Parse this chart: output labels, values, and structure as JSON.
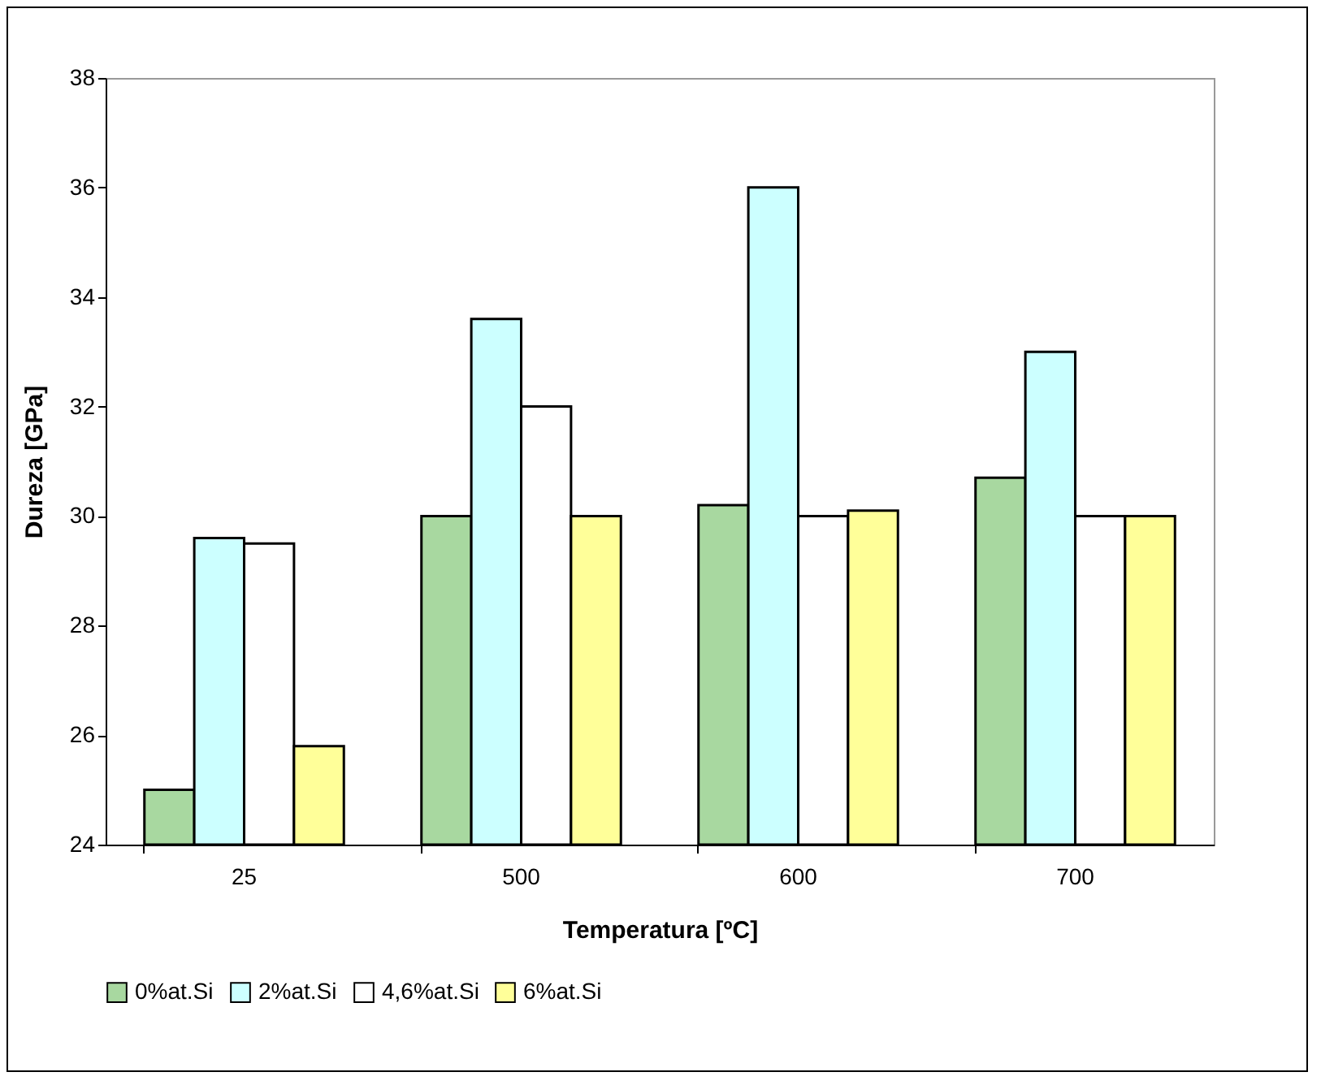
{
  "chart_data": {
    "type": "bar",
    "xlabel": "Temperatura [ºC]",
    "ylabel": "Dureza [GPa]",
    "categories": [
      "25",
      "500",
      "600",
      "700"
    ],
    "series": [
      {
        "name": "0%at.Si",
        "color": "#a8d8a0",
        "values": [
          25,
          30,
          30.2,
          30.7
        ]
      },
      {
        "name": "2%at.Si",
        "color": "#ccffff",
        "values": [
          29.6,
          33.6,
          36,
          33
        ]
      },
      {
        "name": "4,6%at.Si",
        "color": "#ffffff",
        "values": [
          29.5,
          32,
          30,
          30
        ]
      },
      {
        "name": "6%at.Si",
        "color": "#ffff99",
        "values": [
          25.8,
          30,
          30.1,
          30
        ]
      }
    ],
    "ylim": [
      24,
      38
    ],
    "yticks": [
      24,
      26,
      28,
      30,
      32,
      34,
      36,
      38
    ],
    "grid": false,
    "legend": "bottom"
  }
}
